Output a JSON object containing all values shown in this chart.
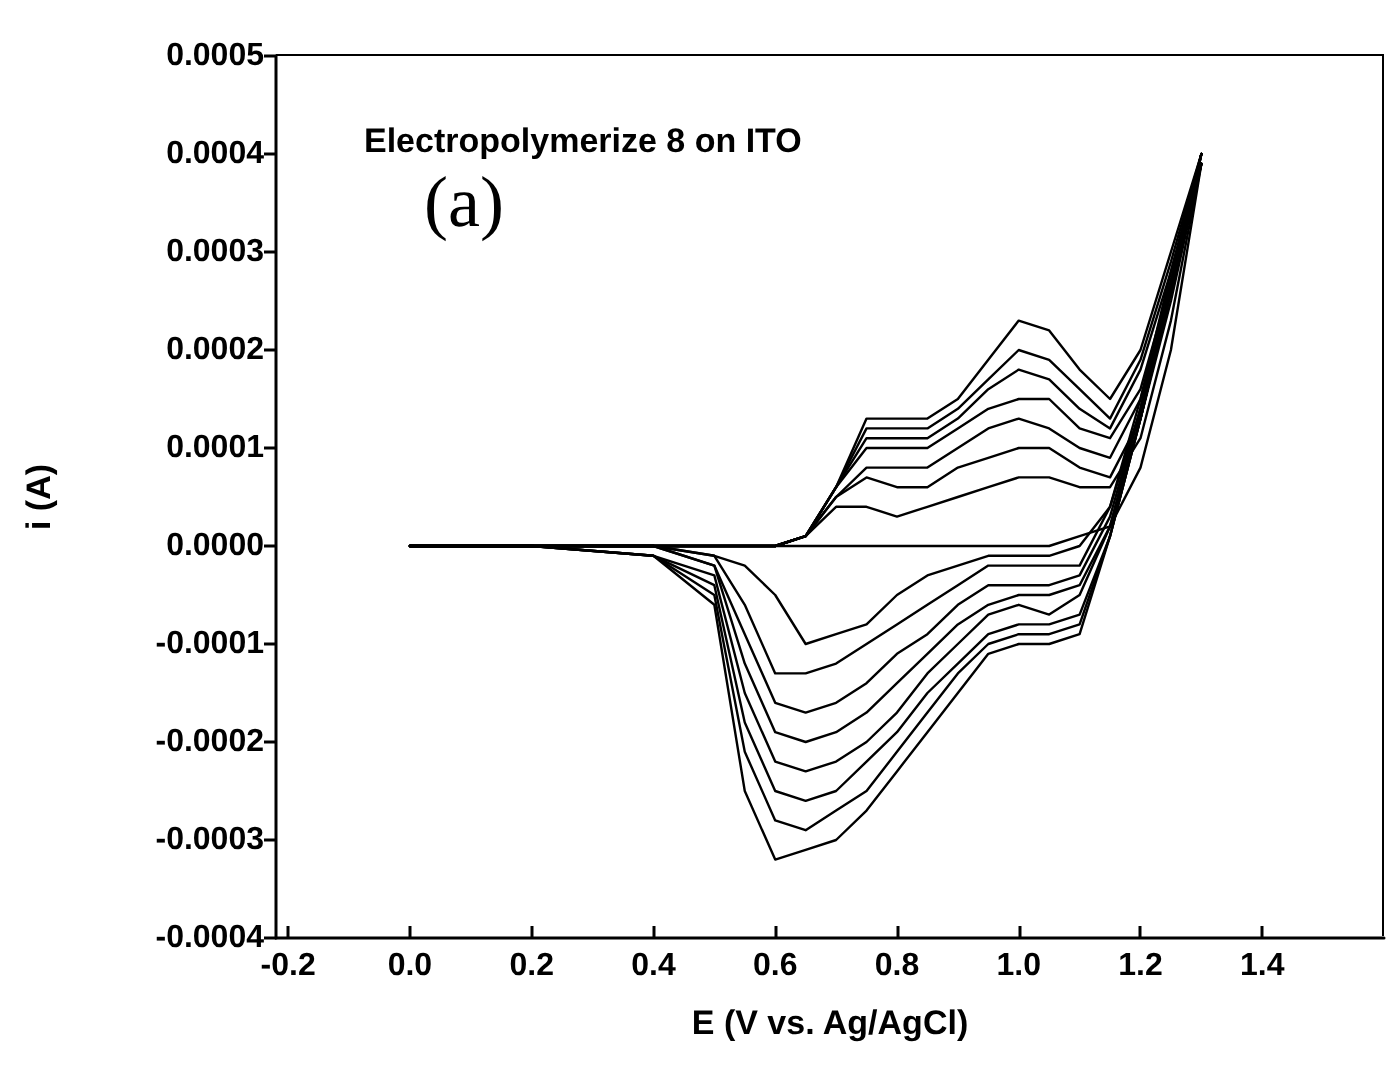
{
  "chart_data": {
    "type": "line",
    "xlabel": "E (V vs. Ag/AgCl)",
    "ylabel": "i (A)",
    "annotations": [
      "Electropolymerize 8 on ITO",
      "(a)"
    ],
    "xlim": [
      -0.22,
      1.6
    ],
    "xticks": [
      -0.2,
      {
        "value": 0,
        "label": "0.0"
      },
      0.2,
      0.4,
      0.6,
      0.8,
      {
        "value": 1,
        "label": "1.0"
      },
      1.2,
      1.4
    ],
    "ylim": [
      -0.0004,
      0.0005
    ],
    "yticks": [
      -0.0004,
      -0.0003,
      -0.0002,
      -0.0001,
      {
        "value": 0,
        "label": "0.0000"
      },
      0.0001,
      0.0002,
      0.0003,
      0.0004,
      0.0005
    ],
    "grid": false,
    "marker": "none",
    "line_style": "solid",
    "series": [
      {
        "color": "#000000",
        "x": [
          0,
          0.2,
          0.4,
          0.5,
          0.6,
          0.65,
          0.7,
          0.75,
          0.8,
          0.85,
          0.9,
          0.95,
          1.0,
          1.05,
          1.1,
          1.15,
          1.2,
          1.25,
          1.3
        ],
        "values": [
          0,
          0,
          0,
          0,
          0,
          0,
          0,
          0,
          0,
          0,
          0,
          0,
          0,
          0,
          1e-05,
          2e-05,
          8e-05,
          0.0002,
          0.00039
        ]
      },
      {
        "color": "#000000",
        "x": [
          1.3,
          1.25,
          1.2,
          1.15,
          1.1,
          1.05,
          1.0,
          0.95,
          0.9,
          0.85,
          0.8,
          0.75,
          0.7,
          0.65,
          0.6,
          0.55,
          0.5,
          0.4,
          0.2,
          0
        ],
        "values": [
          0.00039,
          0.00028,
          0.00015,
          4e-05,
          0,
          -1e-05,
          -1e-05,
          -1e-05,
          -2e-05,
          -3e-05,
          -5e-05,
          -8e-05,
          -9e-05,
          -0.0001,
          -5e-05,
          -2e-05,
          -1e-05,
          0,
          0,
          0
        ]
      },
      {
        "color": "#000000",
        "x": [
          0,
          0.2,
          0.4,
          0.5,
          0.6,
          0.65,
          0.7,
          0.75,
          0.8,
          0.85,
          0.9,
          0.95,
          1.0,
          1.05,
          1.1,
          1.15,
          1.2,
          1.25,
          1.3
        ],
        "values": [
          0,
          0,
          0,
          0,
          0,
          1e-05,
          4e-05,
          4e-05,
          3e-05,
          4e-05,
          5e-05,
          6e-05,
          7e-05,
          7e-05,
          6e-05,
          6e-05,
          0.00011,
          0.00023,
          0.00039
        ]
      },
      {
        "color": "#000000",
        "x": [
          1.3,
          1.25,
          1.2,
          1.15,
          1.1,
          1.05,
          1.0,
          0.95,
          0.9,
          0.85,
          0.8,
          0.75,
          0.7,
          0.65,
          0.6,
          0.55,
          0.5,
          0.4,
          0.2,
          0
        ],
        "values": [
          0.00039,
          0.00027,
          0.00014,
          4e-05,
          -2e-05,
          -2e-05,
          -2e-05,
          -2e-05,
          -4e-05,
          -6e-05,
          -8e-05,
          -0.0001,
          -0.00012,
          -0.00013,
          -0.00013,
          -6e-05,
          -1e-05,
          0,
          0,
          0
        ]
      },
      {
        "color": "#000000",
        "x": [
          0,
          0.2,
          0.4,
          0.5,
          0.6,
          0.65,
          0.7,
          0.75,
          0.8,
          0.85,
          0.9,
          0.95,
          1.0,
          1.05,
          1.1,
          1.15,
          1.2,
          1.25,
          1.3
        ],
        "values": [
          0,
          0,
          0,
          0,
          0,
          1e-05,
          5e-05,
          7e-05,
          6e-05,
          6e-05,
          8e-05,
          9e-05,
          0.0001,
          0.0001,
          8e-05,
          7e-05,
          0.00013,
          0.00025,
          0.00039
        ]
      },
      {
        "color": "#000000",
        "x": [
          1.3,
          1.25,
          1.2,
          1.15,
          1.1,
          1.05,
          1.0,
          0.95,
          0.9,
          0.85,
          0.8,
          0.75,
          0.7,
          0.65,
          0.6,
          0.55,
          0.5,
          0.4,
          0.2,
          0
        ],
        "values": [
          0.00039,
          0.00027,
          0.00014,
          3e-05,
          -3e-05,
          -4e-05,
          -4e-05,
          -4e-05,
          -6e-05,
          -9e-05,
          -0.00011,
          -0.00014,
          -0.00016,
          -0.00017,
          -0.00016,
          -9e-05,
          -2e-05,
          0,
          0,
          0
        ]
      },
      {
        "color": "#000000",
        "x": [
          0,
          0.2,
          0.4,
          0.5,
          0.6,
          0.65,
          0.7,
          0.75,
          0.8,
          0.85,
          0.9,
          0.95,
          1.0,
          1.05,
          1.1,
          1.15,
          1.2,
          1.25,
          1.3
        ],
        "values": [
          0,
          0,
          0,
          0,
          0,
          1e-05,
          5e-05,
          8e-05,
          8e-05,
          8e-05,
          0.0001,
          0.00012,
          0.00013,
          0.00012,
          0.0001,
          9e-05,
          0.00015,
          0.00026,
          0.00039
        ]
      },
      {
        "color": "#000000",
        "x": [
          1.3,
          1.25,
          1.2,
          1.15,
          1.1,
          1.05,
          1.0,
          0.95,
          0.9,
          0.85,
          0.8,
          0.75,
          0.7,
          0.65,
          0.6,
          0.55,
          0.5,
          0.4,
          0.2,
          0
        ],
        "values": [
          0.00039,
          0.00027,
          0.00014,
          2e-05,
          -4e-05,
          -5e-05,
          -5e-05,
          -6e-05,
          -8e-05,
          -0.00011,
          -0.00014,
          -0.00017,
          -0.00019,
          -0.0002,
          -0.00019,
          -0.00012,
          -2e-05,
          0,
          0,
          0
        ]
      },
      {
        "color": "#000000",
        "x": [
          0,
          0.2,
          0.4,
          0.5,
          0.6,
          0.65,
          0.7,
          0.75,
          0.8,
          0.85,
          0.9,
          0.95,
          1.0,
          1.05,
          1.1,
          1.15,
          1.2,
          1.25,
          1.3
        ],
        "values": [
          0,
          0,
          0,
          0,
          0,
          1e-05,
          6e-05,
          0.0001,
          0.0001,
          0.0001,
          0.00012,
          0.00014,
          0.00015,
          0.00015,
          0.00012,
          0.00011,
          0.00016,
          0.00027,
          0.0004
        ]
      },
      {
        "color": "#000000",
        "x": [
          1.3,
          1.25,
          1.2,
          1.15,
          1.1,
          1.05,
          1.0,
          0.95,
          0.9,
          0.85,
          0.8,
          0.75,
          0.7,
          0.65,
          0.6,
          0.55,
          0.5,
          0.4,
          0.2,
          0
        ],
        "values": [
          0.0004,
          0.00026,
          0.00013,
          2e-05,
          -5e-05,
          -7e-05,
          -6e-05,
          -7e-05,
          -0.0001,
          -0.00013,
          -0.00017,
          -0.0002,
          -0.00022,
          -0.00023,
          -0.00022,
          -0.00015,
          -3e-05,
          -1e-05,
          0,
          0
        ]
      },
      {
        "color": "#000000",
        "x": [
          0,
          0.2,
          0.4,
          0.5,
          0.6,
          0.65,
          0.7,
          0.75,
          0.8,
          0.85,
          0.9,
          0.95,
          1.0,
          1.05,
          1.1,
          1.15,
          1.2,
          1.25,
          1.3
        ],
        "values": [
          0,
          0,
          0,
          0,
          0,
          1e-05,
          6e-05,
          0.00011,
          0.00011,
          0.00011,
          0.00013,
          0.00016,
          0.00018,
          0.00017,
          0.00014,
          0.00012,
          0.00018,
          0.00028,
          0.0004
        ]
      },
      {
        "color": "#000000",
        "x": [
          1.3,
          1.25,
          1.2,
          1.15,
          1.1,
          1.05,
          1.0,
          0.95,
          0.9,
          0.85,
          0.8,
          0.75,
          0.7,
          0.65,
          0.6,
          0.55,
          0.5,
          0.4,
          0.2,
          0
        ],
        "values": [
          0.0004,
          0.00026,
          0.00013,
          1e-05,
          -7e-05,
          -8e-05,
          -8e-05,
          -9e-05,
          -0.00012,
          -0.00015,
          -0.00019,
          -0.00022,
          -0.00025,
          -0.00026,
          -0.00025,
          -0.00018,
          -4e-05,
          -1e-05,
          0,
          0
        ]
      },
      {
        "color": "#000000",
        "x": [
          0,
          0.2,
          0.4,
          0.5,
          0.6,
          0.65,
          0.7,
          0.75,
          0.8,
          0.85,
          0.9,
          0.95,
          1.0,
          1.05,
          1.1,
          1.15,
          1.2,
          1.25,
          1.3
        ],
        "values": [
          0,
          0,
          0,
          0,
          0,
          1e-05,
          6e-05,
          0.00012,
          0.00012,
          0.00012,
          0.00014,
          0.00017,
          0.0002,
          0.00019,
          0.00016,
          0.00013,
          0.00019,
          0.00029,
          0.0004
        ]
      },
      {
        "color": "#000000",
        "x": [
          1.3,
          1.25,
          1.2,
          1.15,
          1.1,
          1.05,
          1.0,
          0.95,
          0.9,
          0.85,
          0.8,
          0.75,
          0.7,
          0.65,
          0.6,
          0.55,
          0.5,
          0.4,
          0.2,
          0
        ],
        "values": [
          0.0004,
          0.00026,
          0.00013,
          1e-05,
          -8e-05,
          -9e-05,
          -9e-05,
          -0.0001,
          -0.00013,
          -0.00017,
          -0.00021,
          -0.00025,
          -0.00027,
          -0.00029,
          -0.00028,
          -0.00021,
          -5e-05,
          -1e-05,
          0,
          0
        ]
      },
      {
        "color": "#000000",
        "x": [
          0,
          0.2,
          0.4,
          0.5,
          0.6,
          0.65,
          0.7,
          0.75,
          0.8,
          0.85,
          0.9,
          0.95,
          1.0,
          1.05,
          1.1,
          1.15,
          1.2,
          1.25,
          1.3
        ],
        "values": [
          0,
          0,
          0,
          0,
          0,
          1e-05,
          6e-05,
          0.00013,
          0.00013,
          0.00013,
          0.00015,
          0.00019,
          0.00023,
          0.00022,
          0.00018,
          0.00015,
          0.0002,
          0.0003,
          0.0004
        ]
      },
      {
        "color": "#000000",
        "x": [
          1.3,
          1.25,
          1.2,
          1.15,
          1.1,
          1.05,
          1.0,
          0.95,
          0.9,
          0.85,
          0.8,
          0.75,
          0.7,
          0.65,
          0.6,
          0.55,
          0.5,
          0.4,
          0.2,
          0
        ],
        "values": [
          0.0004,
          0.00026,
          0.00013,
          1e-05,
          -9e-05,
          -0.0001,
          -0.0001,
          -0.00011,
          -0.00015,
          -0.00019,
          -0.00023,
          -0.00027,
          -0.0003,
          -0.00031,
          -0.00032,
          -0.00025,
          -6e-05,
          -1e-05,
          0,
          0
        ]
      }
    ]
  }
}
